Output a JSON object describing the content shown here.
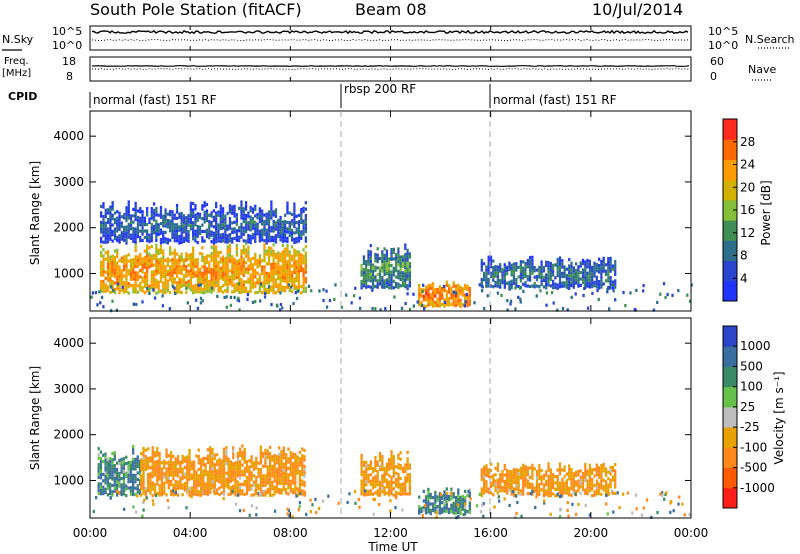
{
  "header": {
    "station": "South Pole Station (fitACF)",
    "beam": "Beam 08",
    "date": "10/Jul/2014"
  },
  "noise_panel": {
    "left_label": "N.Sky",
    "right_label": "N.Search",
    "left_ticks": [
      "10^5",
      "10^0"
    ],
    "right_ticks": [
      "10^5",
      "10^0"
    ]
  },
  "freq_panel": {
    "left_label_line1": "Freq.",
    "left_label_line2": "[MHz]",
    "right_label": "Nave",
    "left_ticks": [
      "18",
      "8"
    ],
    "right_ticks": [
      "60",
      "0"
    ]
  },
  "cpid": {
    "label": "CPID",
    "segments": [
      {
        "name": "normal (fast) 151 RF",
        "start_hour": 0,
        "end_hour": 10.1
      },
      {
        "name": "rbsp 200 RF",
        "start_hour": 10.1,
        "end_hour": 15.95
      },
      {
        "name": "normal (fast) 151 RF",
        "start_hour": 15.95,
        "end_hour": 24
      }
    ]
  },
  "xaxis": {
    "label": "Time UT",
    "tick_labels": [
      "00:00",
      "04:00",
      "08:00",
      "12:00",
      "16:00",
      "20:00",
      "00:00"
    ],
    "tick_hours": [
      0,
      4,
      8,
      12,
      16,
      20,
      24
    ]
  },
  "power_panel": {
    "ylabel": "Slant Range [km]",
    "yticks": [
      "1000",
      "2000",
      "3000",
      "4000"
    ],
    "colorbar_label": "Power [dB]",
    "colorbar_ticks": [
      "4",
      "8",
      "12",
      "16",
      "20",
      "24",
      "28"
    ]
  },
  "velocity_panel": {
    "ylabel": "Slant Range [km]",
    "yticks": [
      "1000",
      "2000",
      "3000",
      "4000"
    ],
    "colorbar_label": "Velocity [m s⁻¹]",
    "colorbar_ticks": [
      "1000",
      "500",
      "100",
      "25",
      "-25",
      "-100",
      "-500",
      "-1000"
    ]
  },
  "colors": {
    "power_scale": [
      "#1f35ff",
      "#2a45d0",
      "#2b6f8a",
      "#3f8f55",
      "#86c03a",
      "#d2b000",
      "#ff9a00",
      "#ff6a00",
      "#ff2a1c"
    ],
    "velocity_scale": [
      "#2d46c8",
      "#3a6fa0",
      "#3a8a63",
      "#66c24a",
      "#bdbdbd",
      "#e8a100",
      "#ff8a1a",
      "#ff5a00",
      "#ff1f16"
    ]
  },
  "chart_data": [
    {
      "type": "heatmap",
      "quantity": "Power",
      "x_range_hours": [
        0,
        24
      ],
      "y_range_km": [
        180,
        4550
      ],
      "colorbar_range_db": [
        0,
        32
      ],
      "regions": [
        {
          "start_hour": 0.4,
          "end_hour": 8.6,
          "range_km": [
            600,
            1700
          ],
          "power_db": 24
        },
        {
          "start_hour": 0.4,
          "end_hour": 8.6,
          "range_km": [
            1700,
            2600
          ],
          "power_db": 8
        },
        {
          "start_hour": 10.8,
          "end_hour": 12.8,
          "range_km": [
            700,
            1700
          ],
          "power_db": 12
        },
        {
          "start_hour": 13.1,
          "end_hour": 15.2,
          "range_km": [
            300,
            850
          ],
          "power_db": 26
        },
        {
          "start_hour": 15.6,
          "end_hour": 21.0,
          "range_km": [
            700,
            1400
          ],
          "power_db": 10
        }
      ]
    },
    {
      "type": "heatmap",
      "quantity": "Velocity",
      "x_range_hours": [
        0,
        24
      ],
      "y_range_km": [
        180,
        4550
      ],
      "colorbar_range_ms": [
        -1000,
        1000
      ],
      "regions": [
        {
          "start_hour": 0.3,
          "end_hour": 2.0,
          "range_km": [
            700,
            1800
          ],
          "velocity_ms": 100
        },
        {
          "start_hour": 2.0,
          "end_hour": 8.6,
          "range_km": [
            700,
            1800
          ],
          "velocity_ms": -100
        },
        {
          "start_hour": 10.8,
          "end_hour": 12.8,
          "range_km": [
            700,
            1700
          ],
          "velocity_ms": -100
        },
        {
          "start_hour": 13.1,
          "end_hour": 15.2,
          "range_km": [
            300,
            850
          ],
          "velocity_ms": 100
        },
        {
          "start_hour": 15.6,
          "end_hour": 21.0,
          "range_km": [
            700,
            1400
          ],
          "velocity_ms": -100
        }
      ]
    }
  ]
}
